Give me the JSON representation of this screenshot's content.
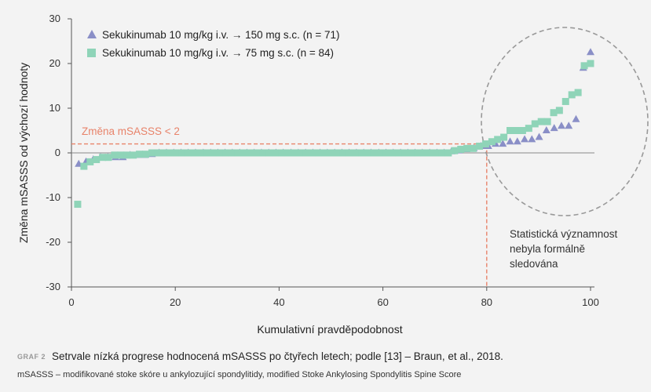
{
  "chart_data": {
    "type": "scatter",
    "xlabel": "Kumulativní pravděpodobnost",
    "ylabel": "Změna mSASSS od výchozí hodnoty",
    "xlim": [
      0,
      100
    ],
    "ylim": [
      -30,
      30
    ],
    "x_ticks": [
      "0",
      "20",
      "40",
      "60",
      "80",
      "100"
    ],
    "y_ticks": [
      "30",
      "20",
      "10",
      "0",
      "-10",
      "-20",
      "-30"
    ],
    "grid": false,
    "legend_position": "top-left",
    "series": [
      {
        "name": "Sekukinumab 10 mg/kg i.v. → 150 mg s.c. (n = 71)",
        "marker": "triangle",
        "color": "#8a8fc7",
        "points": [
          [
            1.4,
            -2.5
          ],
          [
            2.8,
            -2
          ],
          [
            4.2,
            -1.5
          ],
          [
            5.6,
            -1
          ],
          [
            7.0,
            -1
          ],
          [
            8.5,
            -1
          ],
          [
            9.9,
            -1
          ],
          [
            11.3,
            -0.5
          ],
          [
            12.7,
            -0.5
          ],
          [
            14.1,
            -0.5
          ],
          [
            15.5,
            -0.3
          ],
          [
            16.9,
            0
          ],
          [
            18.3,
            0
          ],
          [
            19.7,
            0
          ],
          [
            21.1,
            0
          ],
          [
            22.5,
            0
          ],
          [
            23.9,
            0
          ],
          [
            25.4,
            0
          ],
          [
            26.8,
            0
          ],
          [
            28.2,
            0
          ],
          [
            29.6,
            0
          ],
          [
            31.0,
            0
          ],
          [
            32.4,
            0
          ],
          [
            33.8,
            0
          ],
          [
            35.2,
            0
          ],
          [
            36.6,
            0
          ],
          [
            38.0,
            0
          ],
          [
            39.4,
            0
          ],
          [
            40.8,
            0
          ],
          [
            42.3,
            0
          ],
          [
            43.7,
            0
          ],
          [
            45.1,
            0
          ],
          [
            46.5,
            0
          ],
          [
            47.9,
            0
          ],
          [
            49.3,
            0
          ],
          [
            50.7,
            0
          ],
          [
            52.1,
            0
          ],
          [
            53.5,
            0
          ],
          [
            54.9,
            0
          ],
          [
            56.3,
            0
          ],
          [
            57.7,
            0
          ],
          [
            59.2,
            0
          ],
          [
            60.6,
            0
          ],
          [
            62.0,
            0
          ],
          [
            63.4,
            0
          ],
          [
            64.8,
            0
          ],
          [
            66.2,
            0
          ],
          [
            67.6,
            0
          ],
          [
            69.0,
            0
          ],
          [
            70.4,
            0
          ],
          [
            71.8,
            0
          ],
          [
            73.2,
            0.3
          ],
          [
            74.6,
            0.5
          ],
          [
            76.1,
            0.8
          ],
          [
            77.5,
            1
          ],
          [
            78.9,
            1.5
          ],
          [
            80.3,
            1.5
          ],
          [
            81.7,
            2
          ],
          [
            83.1,
            2
          ],
          [
            84.5,
            2.5
          ],
          [
            85.9,
            2.5
          ],
          [
            87.3,
            3
          ],
          [
            88.7,
            3
          ],
          [
            90.1,
            3.5
          ],
          [
            91.5,
            5
          ],
          [
            93.0,
            5.5
          ],
          [
            94.4,
            6
          ],
          [
            95.8,
            6
          ],
          [
            97.2,
            7.5
          ],
          [
            98.6,
            19
          ],
          [
            100.0,
            22.5
          ]
        ]
      },
      {
        "name": "Sekukinumab 10 mg/kg i.v. → 75 mg s.c. (n = 84)",
        "marker": "square",
        "color": "#8fd4b8",
        "points": [
          [
            1.2,
            -11.5
          ],
          [
            2.4,
            -3
          ],
          [
            3.6,
            -2
          ],
          [
            4.8,
            -1.5
          ],
          [
            6.0,
            -1
          ],
          [
            7.1,
            -1
          ],
          [
            8.3,
            -0.5
          ],
          [
            9.5,
            -0.5
          ],
          [
            10.7,
            -0.5
          ],
          [
            11.9,
            -0.5
          ],
          [
            13.1,
            -0.3
          ],
          [
            14.3,
            -0.3
          ],
          [
            15.5,
            0
          ],
          [
            16.7,
            0
          ],
          [
            17.9,
            0
          ],
          [
            19.0,
            0
          ],
          [
            20.2,
            0
          ],
          [
            21.4,
            0
          ],
          [
            22.6,
            0
          ],
          [
            23.8,
            0
          ],
          [
            25.0,
            0
          ],
          [
            26.2,
            0
          ],
          [
            27.4,
            0
          ],
          [
            28.6,
            0
          ],
          [
            29.8,
            0
          ],
          [
            31.0,
            0
          ],
          [
            32.1,
            0
          ],
          [
            33.3,
            0
          ],
          [
            34.5,
            0
          ],
          [
            35.7,
            0
          ],
          [
            36.9,
            0
          ],
          [
            38.1,
            0
          ],
          [
            39.3,
            0
          ],
          [
            40.5,
            0
          ],
          [
            41.7,
            0
          ],
          [
            42.9,
            0
          ],
          [
            44.0,
            0
          ],
          [
            45.2,
            0
          ],
          [
            46.4,
            0
          ],
          [
            47.6,
            0
          ],
          [
            48.8,
            0
          ],
          [
            50.0,
            0
          ],
          [
            51.2,
            0
          ],
          [
            52.4,
            0
          ],
          [
            53.6,
            0
          ],
          [
            54.8,
            0
          ],
          [
            56.0,
            0
          ],
          [
            57.1,
            0
          ],
          [
            58.3,
            0
          ],
          [
            59.5,
            0
          ],
          [
            60.7,
            0
          ],
          [
            61.9,
            0
          ],
          [
            63.1,
            0
          ],
          [
            64.3,
            0
          ],
          [
            65.5,
            0
          ],
          [
            66.7,
            0
          ],
          [
            67.9,
            0
          ],
          [
            69.0,
            0
          ],
          [
            70.2,
            0
          ],
          [
            71.4,
            0
          ],
          [
            72.6,
            0
          ],
          [
            73.8,
            0.5
          ],
          [
            75.0,
            0.8
          ],
          [
            76.2,
            1
          ],
          [
            77.4,
            1
          ],
          [
            78.6,
            1.5
          ],
          [
            79.8,
            2
          ],
          [
            81.0,
            2.5
          ],
          [
            82.1,
            3
          ],
          [
            83.3,
            3.5
          ],
          [
            84.5,
            5
          ],
          [
            85.7,
            5
          ],
          [
            86.9,
            5
          ],
          [
            88.1,
            5.5
          ],
          [
            89.3,
            6.5
          ],
          [
            90.5,
            7
          ],
          [
            91.7,
            7
          ],
          [
            92.9,
            9
          ],
          [
            94.0,
            9.5
          ],
          [
            95.2,
            11.5
          ],
          [
            96.4,
            13
          ],
          [
            97.6,
            13.5
          ],
          [
            98.8,
            19.5
          ],
          [
            100.0,
            20
          ]
        ]
      }
    ],
    "threshold": {
      "label": "Změna mSASSS < 2",
      "y": 2,
      "x": 80,
      "color": "#e8836a"
    },
    "annotation": {
      "lines": [
        "Statistická významnost",
        "nebyla formálně",
        "sledována"
      ]
    }
  },
  "caption": {
    "tag": "GRAF 2",
    "text": "Setrvale nízká progrese hodnocená mSASSS po čtyřech letech; podle [13] – Braun, et al., 2018.",
    "subtext": "mSASSS – modifikované stoke skóre u ankylozující spondylitidy, modified Stoke Ankylosing Spondylitis Spine Score"
  }
}
